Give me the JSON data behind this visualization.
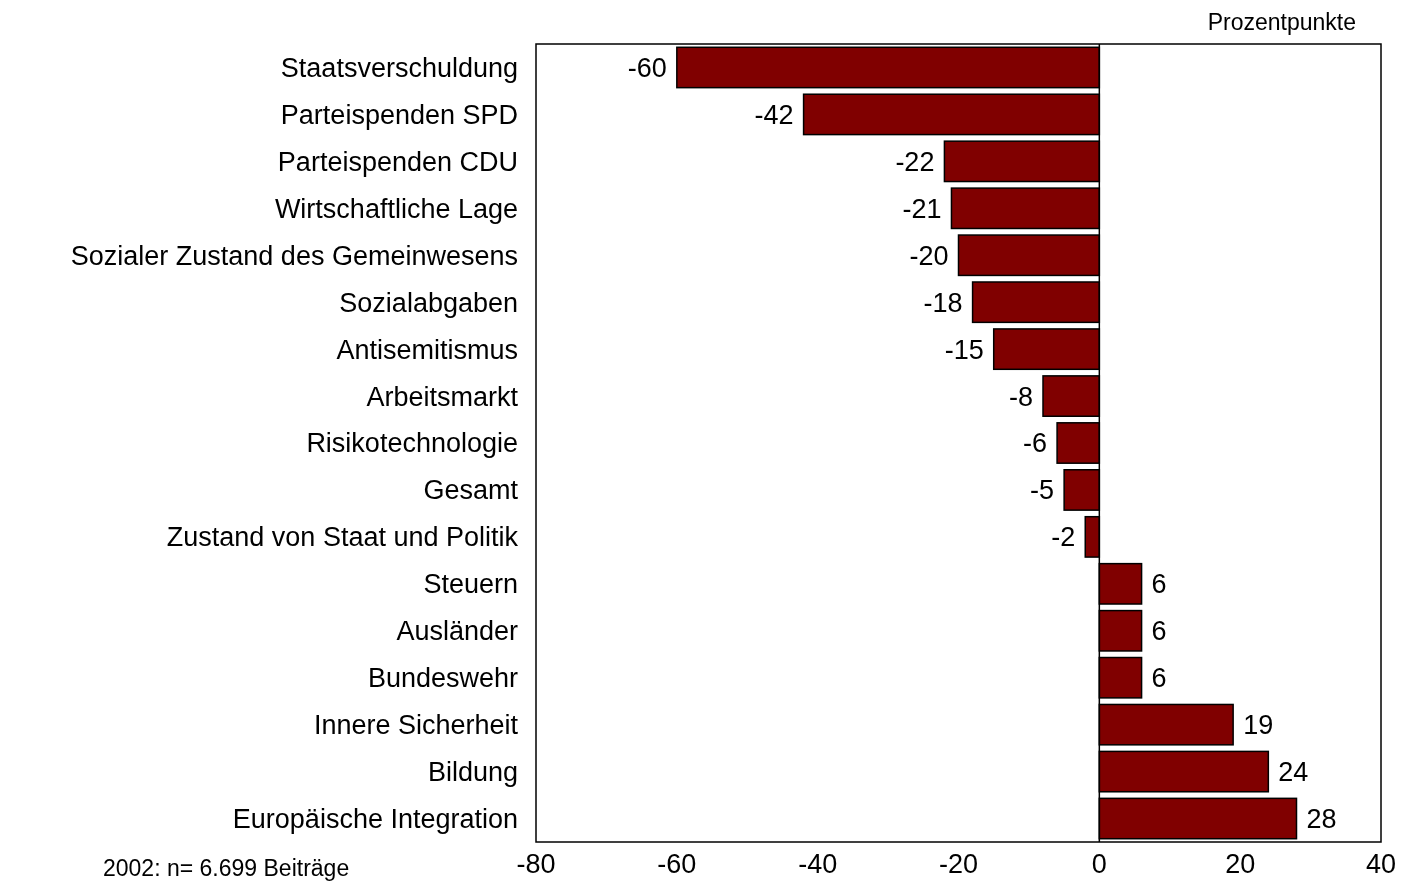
{
  "chart_data": {
    "type": "bar",
    "orientation": "horizontal",
    "xlabel": "Prozentpunkte",
    "annotations": [
      "2002: n= 6.699 Beiträge"
    ],
    "categories": [
      "Staatsverschuldung",
      "Parteispenden SPD",
      "Parteispenden CDU",
      "Wirtschaftliche Lage",
      "Sozialer Zustand des Gemeinwesens",
      "Sozialabgaben",
      "Antisemitismus",
      "Arbeitsmarkt",
      "Risikotechnologie",
      "Gesamt",
      "Zustand von Staat und Politik",
      "Steuern",
      "Ausländer",
      "Bundeswehr",
      "Innere Sicherheit",
      "Bildung",
      "Europäische Integration"
    ],
    "values": [
      -60,
      -42,
      -22,
      -21,
      -20,
      -18,
      -15,
      -8,
      -6,
      -5,
      -2,
      6,
      6,
      6,
      19,
      24,
      28
    ],
    "color": "#800000",
    "data_labels": true,
    "xlim": [
      -80,
      40
    ],
    "xticks": [
      -80,
      -60,
      -40,
      -20,
      0,
      20,
      40
    ]
  }
}
